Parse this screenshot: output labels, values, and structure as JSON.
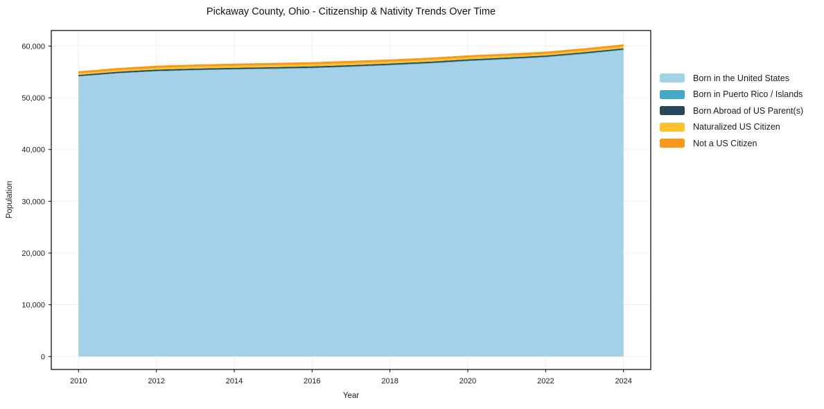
{
  "figure": {
    "background": "#ffffff",
    "text_color": "#1a1a1a",
    "grid_color": "#ededed",
    "frame_color": "#000000"
  },
  "chart_data": {
    "type": "area",
    "stacked": true,
    "title": "Pickaway County, Ohio - Citizenship & Nativity Trends Over Time",
    "xlabel": "Year",
    "ylabel": "Population",
    "x": [
      2010,
      2011,
      2012,
      2013,
      2014,
      2015,
      2016,
      2017,
      2018,
      2019,
      2020,
      2021,
      2022,
      2023,
      2024
    ],
    "series": [
      {
        "key": "born_us",
        "name": "Born in the United States",
        "color": "#a4d1e8",
        "values": [
          54100,
          54700,
          55100,
          55300,
          55450,
          55550,
          55700,
          55950,
          56250,
          56600,
          57050,
          57400,
          57800,
          58450,
          59200
        ]
      },
      {
        "key": "born_pr_islands",
        "name": "Born in Puerto Rico / Islands",
        "color": "#45a8c6",
        "values": [
          60,
          70,
          80,
          90,
          100,
          105,
          110,
          115,
          120,
          120,
          125,
          125,
          130,
          130,
          130
        ]
      },
      {
        "key": "born_abroad",
        "name": "Born Abroad of US Parent(s)",
        "color": "#25485c",
        "values": [
          250,
          255,
          260,
          260,
          260,
          255,
          255,
          250,
          250,
          250,
          250,
          245,
          240,
          235,
          230
        ]
      },
      {
        "key": "naturalized",
        "name": "Naturalized US Citizen",
        "color": "#fcc330",
        "values": [
          280,
          300,
          320,
          340,
          360,
          380,
          400,
          390,
          380,
          370,
          360,
          340,
          320,
          325,
          330
        ]
      },
      {
        "key": "not_citizen",
        "name": "Not a US Citizen",
        "color": "#f8981d",
        "values": [
          420,
          425,
          430,
          435,
          440,
          435,
          430,
          425,
          420,
          415,
          410,
          415,
          420,
          435,
          450
        ]
      }
    ],
    "xticks": [
      2010,
      2012,
      2014,
      2016,
      2018,
      2020,
      2022,
      2024
    ],
    "yticks": [
      {
        "value": 0,
        "label": "0"
      },
      {
        "value": 10000,
        "label": "10,000"
      },
      {
        "value": 20000,
        "label": "20,000"
      },
      {
        "value": 30000,
        "label": "30,000"
      },
      {
        "value": 40000,
        "label": "40,000"
      },
      {
        "value": 50000,
        "label": "50,000"
      },
      {
        "value": 60000,
        "label": "60,000"
      }
    ],
    "xlim": [
      2009.3,
      2024.7
    ],
    "ylim": [
      -2500,
      63000
    ],
    "grid": true,
    "legend_position": "right"
  }
}
